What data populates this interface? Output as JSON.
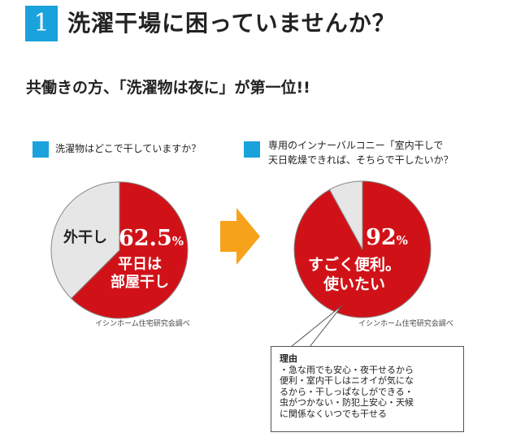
{
  "section": {
    "number": "1",
    "title": "洗濯干場に困っていませんか？",
    "subtitle": "共働きの方、「洗濯物は夜に」が第一位!!"
  },
  "colors": {
    "accent": "#1aa2dc",
    "red": "#d01218",
    "grey": "#e6e6e6",
    "arrow": "#f7a21b"
  },
  "chart_data": [
    {
      "type": "pie",
      "question": "洗濯物はどこで干していますか？",
      "slices": [
        {
          "label": "平日は部屋干し",
          "value": 62.5,
          "color": "#d01218",
          "value_text": "62.5",
          "unit": "%",
          "caption_lines": [
            "平日は",
            "部屋干し"
          ]
        },
        {
          "label": "外干し",
          "value": 37.5,
          "color": "#e6e6e6",
          "caption_lines": [
            "外干し"
          ]
        }
      ],
      "source": "イシンホーム住宅研究会調べ"
    },
    {
      "type": "pie",
      "question_lines": [
        "専用のインナーバルコニー「室内干しで",
        "天日乾燥できれば、そちらで干したいか？"
      ],
      "slices": [
        {
          "label": "すごく便利。使いたい",
          "value": 92,
          "color": "#d01218",
          "value_text": "92",
          "unit": "%",
          "caption_lines": [
            "すごく便利。",
            "使いたい"
          ]
        },
        {
          "label": "",
          "value": 8,
          "color": "#e6e6e6"
        }
      ],
      "source": "イシンホーム住宅研究会調べ"
    }
  ],
  "reasons": {
    "title": "理由",
    "lines": [
      "・急な雨でも安心・夜干せるから",
      "便利・室内干しはニオイが気にな",
      "るから・干しっぱなしができる・",
      "虫がつかない・防犯上安心・天候",
      "に関係なくいつでも干せる"
    ]
  }
}
